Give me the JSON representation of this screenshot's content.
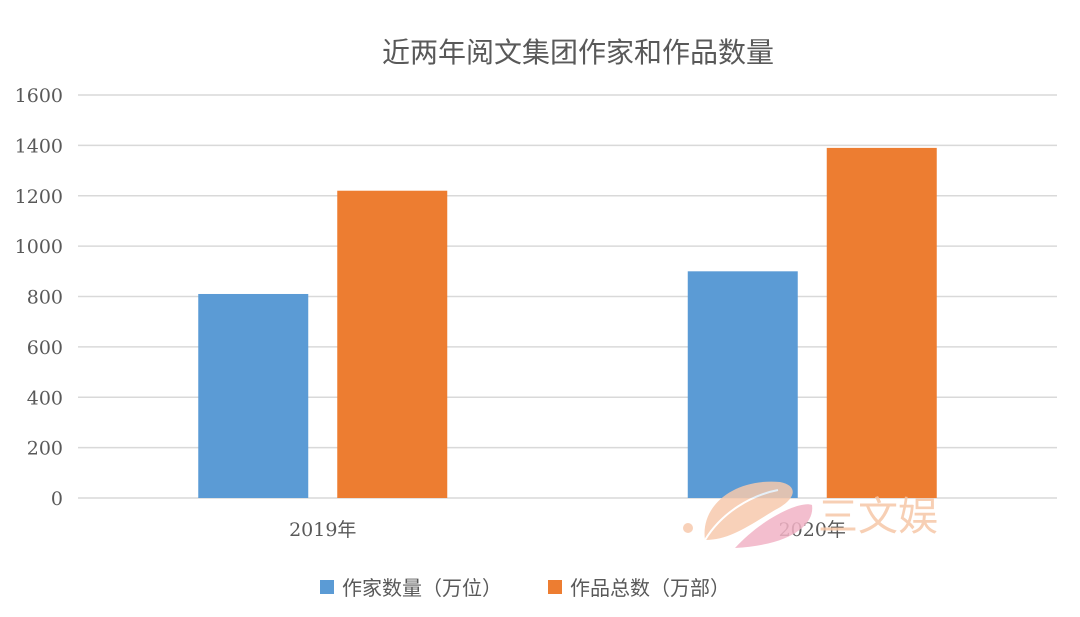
{
  "chart_data": {
    "type": "bar",
    "title": "近两年阅文集团作家和作品数量",
    "categories": [
      "2019年",
      "2020年"
    ],
    "series": [
      {
        "name": "作家数量（万位）",
        "values": [
          810,
          900
        ],
        "color": "#5b9bd5"
      },
      {
        "name": "作品总数（万部）",
        "values": [
          1220,
          1390
        ],
        "color": "#ed7d31"
      }
    ],
    "ylim": [
      0,
      1600
    ],
    "yticks": [
      0,
      200,
      400,
      600,
      800,
      1000,
      1200,
      1400,
      1600
    ],
    "grid": true,
    "legend_position": "bottom"
  },
  "watermark": {
    "text": "三文娱"
  }
}
